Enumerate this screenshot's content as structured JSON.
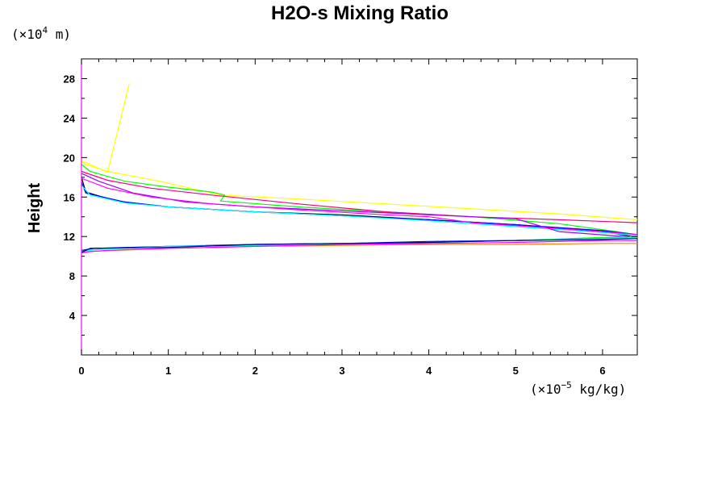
{
  "chart_data": {
    "type": "line",
    "title": "H2O-s Mixing Ratio",
    "xlabel": "",
    "ylabel": "Height",
    "x_unit": {
      "prefix": "(×10",
      "exp": "−5",
      "suffix": " kg/kg)"
    },
    "y_unit": {
      "prefix": "(×10",
      "exp": "4",
      "suffix": " m)"
    },
    "xlim": [
      0,
      6.4
    ],
    "ylim": [
      0,
      30
    ],
    "x_ticks": [
      "0",
      "1",
      "2",
      "3",
      "4",
      "5",
      "6"
    ],
    "y_ticks": [
      "4",
      "8",
      "12",
      "16",
      "20",
      "24",
      "28"
    ],
    "grid": false,
    "legend": "none",
    "series": [
      {
        "color": "#ffff00",
        "x": [
          0.55,
          0.3,
          0.05,
          0.0,
          0.05,
          0.3,
          0.9,
          1.6,
          2.5,
          3.5,
          4.5,
          5.5,
          6.4
        ],
        "y": [
          27.5,
          18.5,
          19.5,
          19.6,
          19.3,
          18.6,
          17.6,
          16.2,
          15.8,
          15.3,
          14.8,
          14.3,
          13.7
        ]
      },
      {
        "color": "#00ff00",
        "x": [
          0.0,
          0.1,
          0.5,
          1.0,
          1.5,
          1.65,
          1.6,
          2.5,
          3.5,
          4.5,
          5.5,
          6.4
        ],
        "y": [
          19.3,
          18.6,
          17.6,
          17.0,
          16.5,
          16.2,
          15.6,
          15.0,
          14.5,
          14.0,
          13.3,
          12.2
        ]
      },
      {
        "color": "#ff0080",
        "x": [
          0.0,
          0.3,
          0.8,
          1.5,
          2.5,
          3.5,
          4.5,
          5.5,
          6.4
        ],
        "y": [
          18.6,
          17.7,
          16.9,
          16.2,
          15.3,
          14.5,
          14.0,
          13.7,
          13.4
        ]
      },
      {
        "color": "#000000",
        "x": [
          0.0,
          0.05,
          0.4,
          1.0,
          2.0,
          3.0,
          4.0,
          5.0,
          6.0,
          6.4
        ],
        "y": [
          18.0,
          16.5,
          15.6,
          15.0,
          14.5,
          14.2,
          13.7,
          13.2,
          12.5,
          11.9
        ]
      },
      {
        "color": "#0000ff",
        "x": [
          0.0,
          0.05,
          0.5,
          1.0,
          2.0,
          3.0,
          4.0,
          5.0,
          6.0,
          6.4
        ],
        "y": [
          17.5,
          16.4,
          15.5,
          15.0,
          14.5,
          14.1,
          13.7,
          13.2,
          12.6,
          12.2
        ]
      },
      {
        "color": "#00ffff",
        "x": [
          0.0,
          0.1,
          0.5,
          1.0,
          2.0,
          3.0,
          4.0,
          5.0,
          6.0,
          6.4
        ],
        "y": [
          17.2,
          16.2,
          15.4,
          15.0,
          14.5,
          14.1,
          13.6,
          13.0,
          12.4,
          12.1
        ]
      },
      {
        "color": "#a000ff",
        "x": [
          0.0,
          0.2,
          0.6,
          1.2,
          2.0,
          3.0,
          4.0,
          5.0,
          5.5,
          6.4
        ],
        "y": [
          18.4,
          17.6,
          16.4,
          15.5,
          15.0,
          14.6,
          14.2,
          13.8,
          12.5,
          11.9
        ]
      },
      {
        "color": "#ff00ff",
        "x": [
          0.0,
          0.3,
          0.8,
          1.5,
          2.5,
          3.5,
          4.0,
          4.5,
          5.0,
          5.5,
          6.0,
          6.4
        ],
        "y": [
          17.9,
          16.9,
          16.0,
          15.3,
          14.7,
          14.2,
          14.0,
          13.4,
          13.1,
          12.8,
          12.5,
          12.2
        ]
      },
      {
        "color": "#ff8000",
        "x": [
          0.0,
          0.1,
          1.0,
          2.0,
          3.0,
          4.0,
          5.0,
          6.0,
          6.4
        ],
        "y": [
          10.3,
          10.5,
          10.8,
          11.0,
          11.1,
          11.2,
          11.2,
          11.3,
          11.3
        ]
      },
      {
        "color": "#00ff00",
        "x": [
          0.0,
          0.1,
          0.6,
          1.0,
          2.0,
          3.0,
          4.0,
          5.0,
          6.0,
          6.4
        ],
        "y": [
          10.5,
          10.8,
          10.9,
          11.0,
          11.1,
          11.2,
          11.4,
          11.6,
          11.9,
          12.0
        ]
      },
      {
        "color": "#0000ff",
        "x": [
          0.0,
          0.15,
          1.0,
          2.0,
          3.0,
          4.0,
          5.0,
          6.0,
          6.4
        ],
        "y": [
          10.6,
          10.8,
          11.0,
          11.2,
          11.3,
          11.5,
          11.6,
          11.8,
          11.9
        ]
      },
      {
        "color": "#ff00ff",
        "x": [
          0.0,
          0.3,
          1.0,
          2.0,
          3.0,
          4.0,
          5.0,
          6.0,
          6.4
        ],
        "y": [
          10.4,
          10.6,
          10.8,
          11.0,
          11.2,
          11.3,
          11.4,
          11.6,
          11.6
        ]
      },
      {
        "color": "#00ffff",
        "x": [
          0.0,
          0.2,
          1.0,
          2.0,
          3.0,
          4.0,
          5.0,
          6.0,
          6.4
        ],
        "y": [
          10.5,
          10.7,
          11.0,
          11.1,
          11.3,
          11.4,
          11.6,
          11.8,
          11.9
        ]
      },
      {
        "color": "#000080",
        "x": [
          0.0,
          0.1,
          1.0,
          2.0,
          3.0,
          4.0,
          5.0,
          6.0,
          6.4
        ],
        "y": [
          10.4,
          10.8,
          10.9,
          11.2,
          11.3,
          11.4,
          11.6,
          11.7,
          11.8
        ]
      }
    ]
  }
}
